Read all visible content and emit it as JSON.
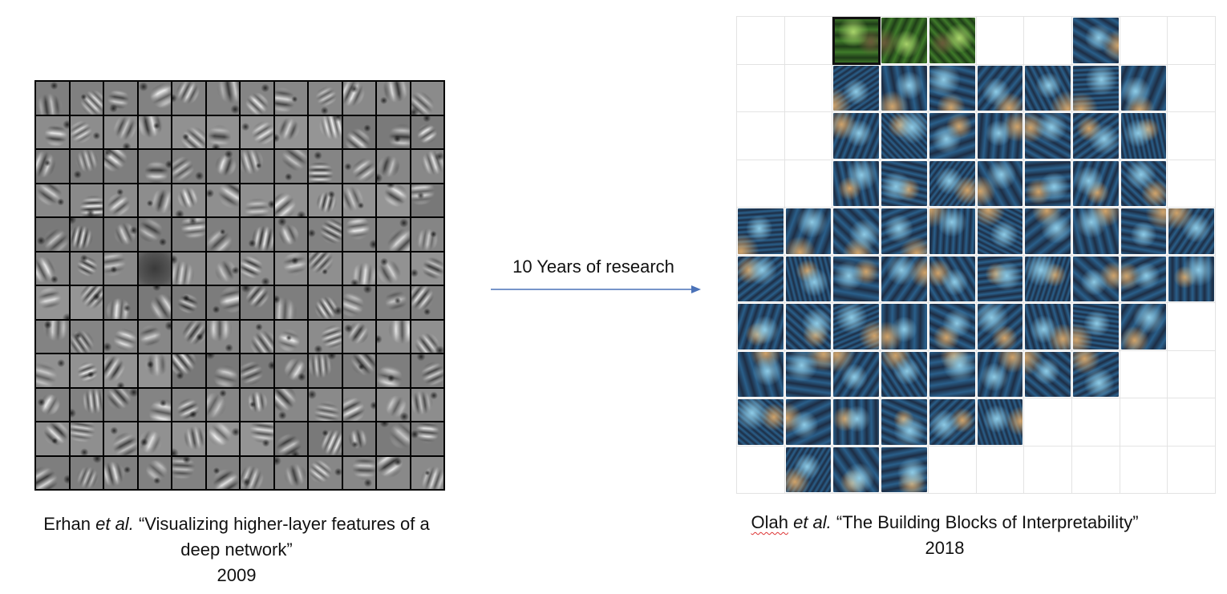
{
  "left_figure": {
    "grid_size": 12,
    "caption_authors": "Erhan",
    "caption_etal": "et al.",
    "caption_title_line1": "“Visualizing higher-layer features of a",
    "caption_title_line2": "deep network”",
    "caption_year": "2009"
  },
  "arrow": {
    "label": "10 Years of research",
    "color": "#4a72b8"
  },
  "right_figure": {
    "columns": 10,
    "rows": 10,
    "caption_authors": "Olah",
    "caption_etal": "et al.",
    "caption_title": "“The Building Blocks of Interpretability”",
    "caption_year": "2018",
    "filled_cells": [
      [
        0,
        2
      ],
      [
        0,
        3
      ],
      [
        0,
        4
      ],
      [
        0,
        7
      ],
      [
        1,
        2
      ],
      [
        1,
        3
      ],
      [
        1,
        4
      ],
      [
        1,
        5
      ],
      [
        1,
        6
      ],
      [
        1,
        7
      ],
      [
        1,
        8
      ],
      [
        2,
        2
      ],
      [
        2,
        3
      ],
      [
        2,
        4
      ],
      [
        2,
        5
      ],
      [
        2,
        6
      ],
      [
        2,
        7
      ],
      [
        2,
        8
      ],
      [
        3,
        2
      ],
      [
        3,
        3
      ],
      [
        3,
        4
      ],
      [
        3,
        5
      ],
      [
        3,
        6
      ],
      [
        3,
        7
      ],
      [
        3,
        8
      ],
      [
        4,
        0
      ],
      [
        4,
        1
      ],
      [
        4,
        2
      ],
      [
        4,
        3
      ],
      [
        4,
        4
      ],
      [
        4,
        5
      ],
      [
        4,
        6
      ],
      [
        4,
        7
      ],
      [
        4,
        8
      ],
      [
        4,
        9
      ],
      [
        5,
        0
      ],
      [
        5,
        1
      ],
      [
        5,
        2
      ],
      [
        5,
        3
      ],
      [
        5,
        4
      ],
      [
        5,
        5
      ],
      [
        5,
        6
      ],
      [
        5,
        7
      ],
      [
        5,
        8
      ],
      [
        5,
        9
      ],
      [
        6,
        0
      ],
      [
        6,
        1
      ],
      [
        6,
        2
      ],
      [
        6,
        3
      ],
      [
        6,
        4
      ],
      [
        6,
        5
      ],
      [
        6,
        6
      ],
      [
        6,
        7
      ],
      [
        6,
        8
      ],
      [
        7,
        0
      ],
      [
        7,
        1
      ],
      [
        7,
        2
      ],
      [
        7,
        3
      ],
      [
        7,
        4
      ],
      [
        7,
        5
      ],
      [
        7,
        6
      ],
      [
        7,
        7
      ],
      [
        8,
        0
      ],
      [
        8,
        1
      ],
      [
        8,
        2
      ],
      [
        8,
        3
      ],
      [
        8,
        4
      ],
      [
        8,
        5
      ],
      [
        9,
        1
      ],
      [
        9,
        2
      ],
      [
        9,
        3
      ]
    ],
    "highlighted_cell": [
      0,
      2
    ]
  }
}
